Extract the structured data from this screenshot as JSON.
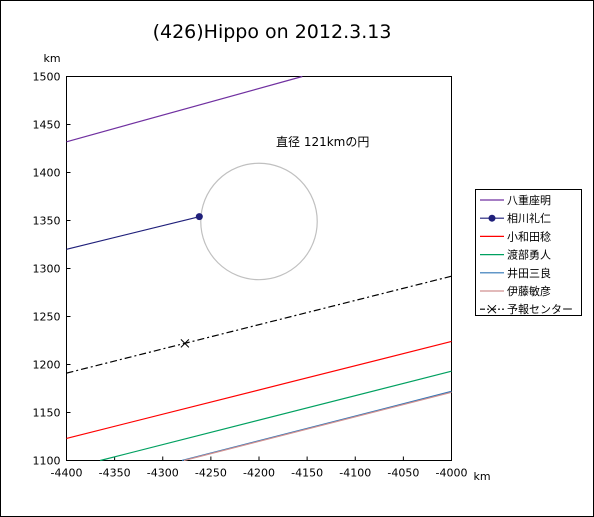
{
  "chart_data": {
    "type": "line",
    "title": "(426)Hippo on 2012.3.13",
    "xlabel": "km",
    "ylabel": "km",
    "xlim": [
      -4400,
      -4000
    ],
    "ylim": [
      1100,
      1500
    ],
    "xticks": [
      "-4400",
      "-4350",
      "-4300",
      "-4250",
      "-4200",
      "-4150",
      "-4100",
      "-4050",
      "-4000"
    ],
    "yticks": [
      "1100",
      "1150",
      "1200",
      "1250",
      "1300",
      "1350",
      "1400",
      "1450",
      "1500"
    ],
    "grid": false,
    "legend_position": "right",
    "annotation": "直径 121kmの円",
    "circle": {
      "center": [
        -4200,
        1349
      ],
      "diameter_km": 121,
      "color": "#c0c0c0"
    },
    "series": [
      {
        "name": "八重座明",
        "color": "#7030a0",
        "style": "solid",
        "x": [
          -4400,
          -4155
        ],
        "y": [
          1432,
          1500
        ]
      },
      {
        "name": "相川礼仁",
        "color": "#1f1f7a",
        "style": "solid",
        "marker": "dot",
        "x": [
          -4400,
          -4262
        ],
        "y": [
          1320,
          1354
        ]
      },
      {
        "name": "小和田稔",
        "color": "#ff0000",
        "style": "solid",
        "x": [
          -4400,
          -4000
        ],
        "y": [
          1123,
          1224
        ]
      },
      {
        "name": "渡部勇人",
        "color": "#00a060",
        "style": "solid",
        "x": [
          -4365,
          -4000
        ],
        "y": [
          1100,
          1193
        ]
      },
      {
        "name": "井田三良",
        "color": "#2e75b6",
        "style": "solid",
        "x": [
          -4280,
          -4000
        ],
        "y": [
          1100,
          1172
        ]
      },
      {
        "name": "伊藤敏彦",
        "color": "#d09090",
        "style": "solid",
        "x": [
          -4278,
          -4000
        ],
        "y": [
          1100,
          1171
        ]
      },
      {
        "name": "予報センター",
        "color": "#000000",
        "style": "dashdot",
        "marker": "x",
        "x": [
          -4400,
          -4000
        ],
        "y": [
          1191,
          1292
        ],
        "marker_point": [
          -4277,
          1222
        ]
      }
    ]
  }
}
